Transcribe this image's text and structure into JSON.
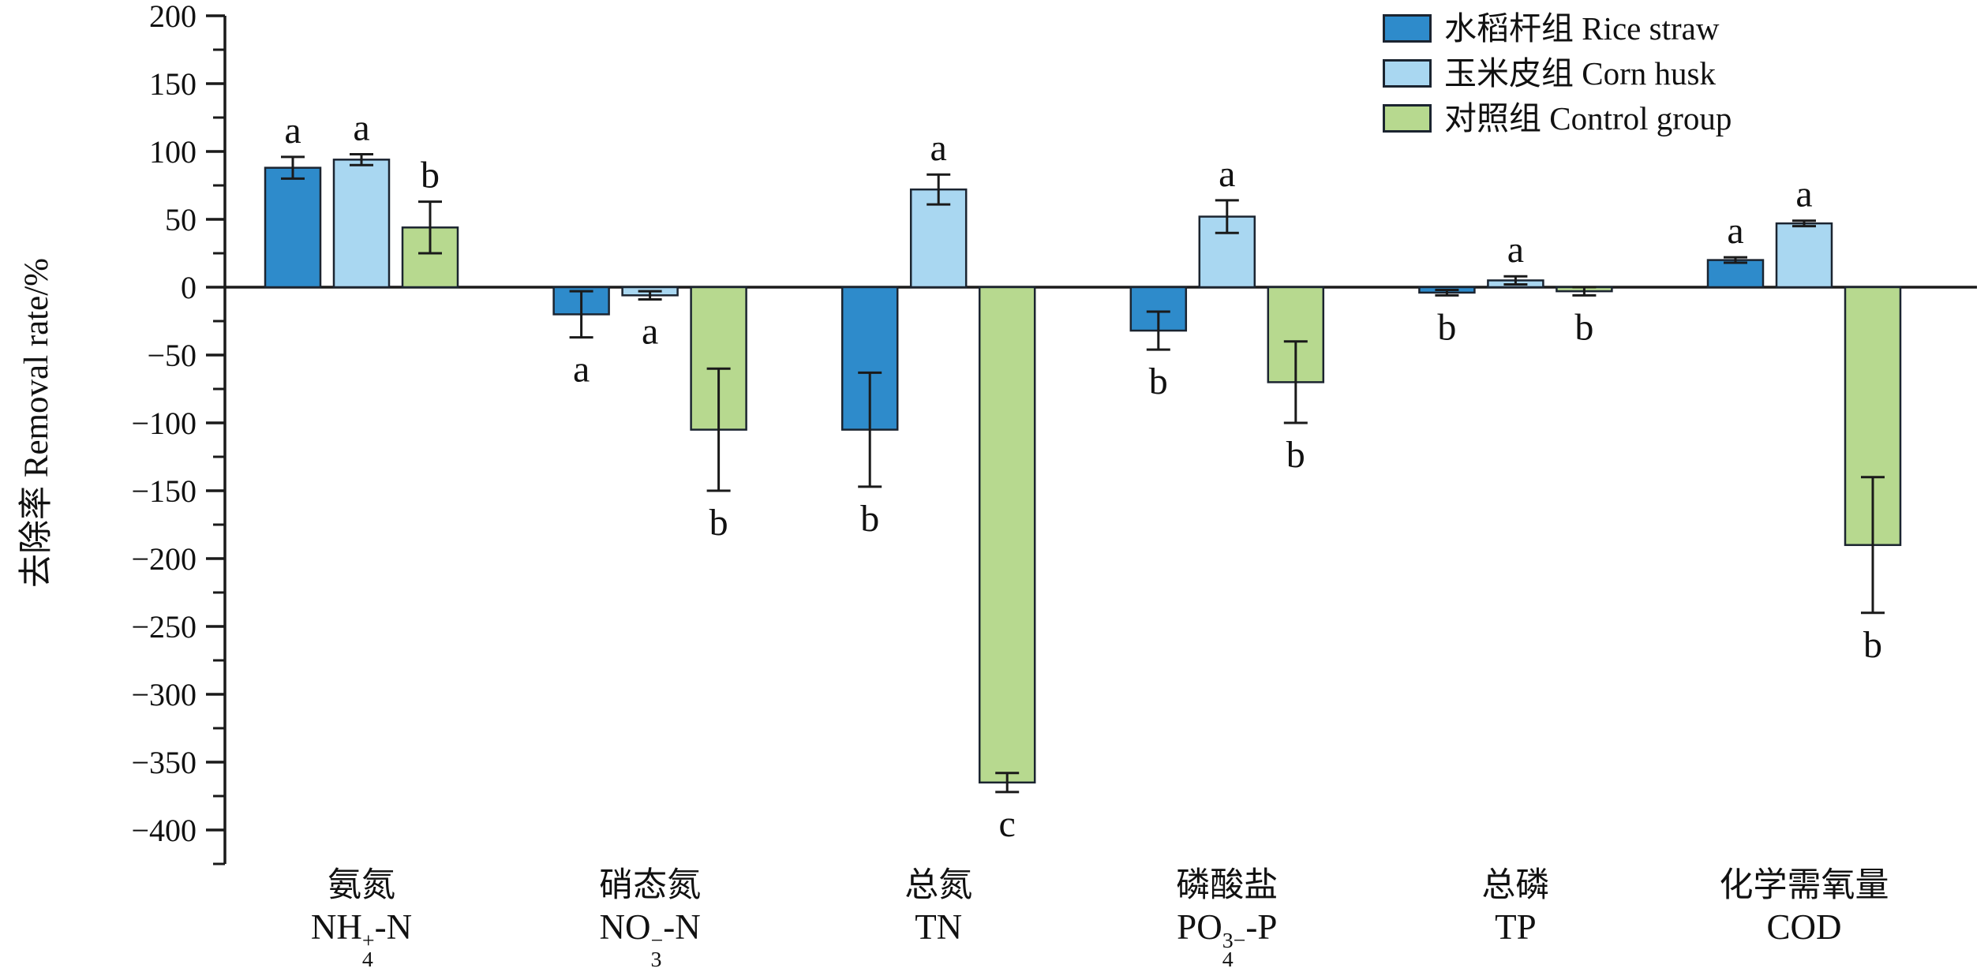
{
  "chart_data": {
    "type": "bar",
    "title": "",
    "xlabel": "",
    "ylabel": "去除率 Removal rate/%",
    "ylim": [
      -425,
      200
    ],
    "grid": false,
    "legend_position": "top-right",
    "y_major_ticks": [
      {
        "v": 200,
        "label": "200"
      },
      {
        "v": 150,
        "label": "150"
      },
      {
        "v": 100,
        "label": "100"
      },
      {
        "v": 50,
        "label": "50"
      },
      {
        "v": 0,
        "label": "0"
      },
      {
        "v": -50,
        "label": "−50"
      },
      {
        "v": -100,
        "label": "−100"
      },
      {
        "v": -150,
        "label": "−150"
      },
      {
        "v": -200,
        "label": "−200"
      },
      {
        "v": -250,
        "label": "−250"
      },
      {
        "v": -300,
        "label": "−300"
      },
      {
        "v": -350,
        "label": "−350"
      },
      {
        "v": -400,
        "label": "−400"
      }
    ],
    "y_minor_ticks": [
      175,
      125,
      75,
      25,
      -25,
      -75,
      -125,
      -175,
      -225,
      -275,
      -325,
      -375,
      -425
    ],
    "categories": [
      {
        "zh": "氨氮",
        "formula_pre": "NH",
        "formula_sup": "+",
        "formula_sub": "4",
        "formula_post": "-N"
      },
      {
        "zh": "硝态氮",
        "formula_pre": "NO",
        "formula_sup": "−",
        "formula_sub": "3",
        "formula_post": "-N"
      },
      {
        "zh": "总氮",
        "formula_pre": "TN",
        "formula_sup": "",
        "formula_sub": "",
        "formula_post": ""
      },
      {
        "zh": "磷酸盐",
        "formula_pre": "PO",
        "formula_sup": "3−",
        "formula_sub": "4",
        "formula_post": "-P"
      },
      {
        "zh": "总磷",
        "formula_pre": "TP",
        "formula_sup": "",
        "formula_sub": "",
        "formula_post": ""
      },
      {
        "zh": "化学需氧量",
        "formula_pre": "COD",
        "formula_sup": "",
        "formula_sub": "",
        "formula_post": ""
      }
    ],
    "series": [
      {
        "name": "水稻杆组 Rice straw",
        "color": "#2E8BCB",
        "values": [
          88,
          -20,
          -105,
          -32,
          -4,
          20
        ],
        "errors": [
          8,
          17,
          42,
          14,
          2,
          2
        ],
        "letters": [
          "a",
          "a",
          "b",
          "b",
          "b",
          "a"
        ]
      },
      {
        "name": "玉米皮组 Corn husk",
        "color": "#A9D7F1",
        "values": [
          94,
          -6,
          72,
          52,
          5,
          47
        ],
        "errors": [
          4,
          3,
          11,
          12,
          3,
          2
        ],
        "letters": [
          "a",
          "a",
          "a",
          "a",
          "a",
          "a"
        ]
      },
      {
        "name": "对照组 Control group",
        "color": "#B7D98F",
        "values": [
          44,
          -105,
          -365,
          -70,
          -3,
          -190
        ],
        "errors": [
          19,
          45,
          7,
          30,
          3,
          50
        ],
        "letters": [
          "b",
          "b",
          "c",
          "b",
          "b",
          "b"
        ]
      }
    ]
  }
}
